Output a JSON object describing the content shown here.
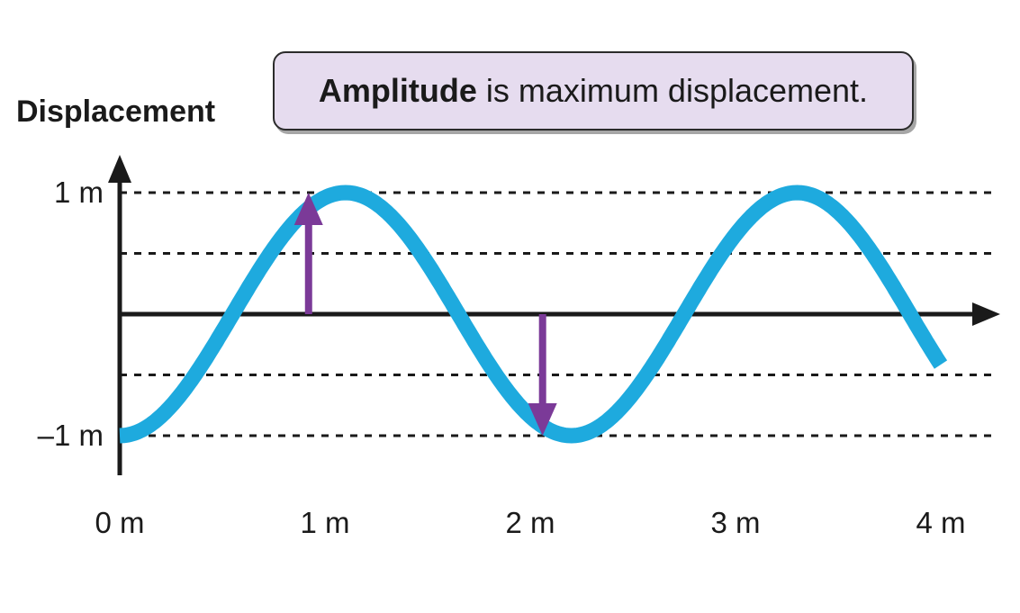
{
  "callout": {
    "bold_text": "Amplitude",
    "rest_text": " is maximum displacement."
  },
  "y_axis": {
    "title": "Displacement",
    "ticks": [
      {
        "value": 1,
        "label": "1 m"
      },
      {
        "value": -1,
        "label": "–1 m"
      }
    ]
  },
  "x_axis": {
    "ticks": [
      {
        "value": 0,
        "label": "0 m"
      },
      {
        "value": 1,
        "label": "1 m"
      },
      {
        "value": 2,
        "label": "2 m"
      },
      {
        "value": 3,
        "label": "3 m"
      },
      {
        "value": 4,
        "label": "4 m"
      }
    ]
  },
  "wave": {
    "amplitude": 1,
    "wavelength": 2.2,
    "x_start": 0,
    "x_end": 4,
    "initial": "trough"
  },
  "guide_lines": [
    1,
    0.5,
    -0.5,
    -1
  ],
  "amplitude_arrows": [
    {
      "x": 0.92,
      "from": 0,
      "to": 1
    },
    {
      "x": 2.06,
      "from": 0,
      "to": -1
    }
  ],
  "colors": {
    "wave": "#1eaade",
    "arrow": "#7b3a98",
    "axis": "#1a1a1a",
    "callout_bg": "#e6dcef"
  }
}
